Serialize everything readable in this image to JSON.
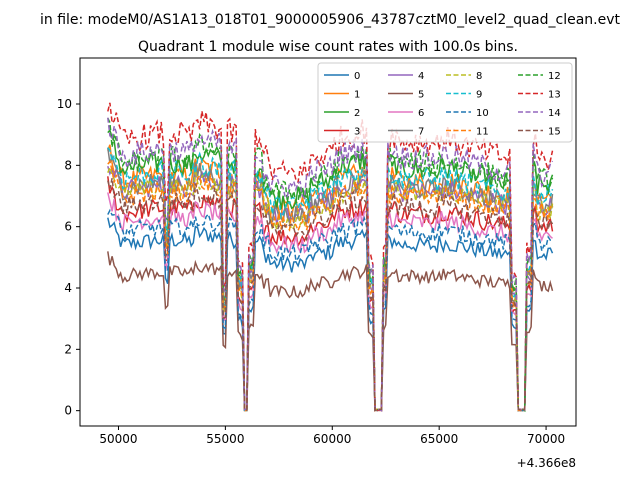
{
  "suptitle": "in file: modeM0/AS1A13_018T01_9000005906_43787cztM0_level2_quad_clean.evt",
  "chart_data": {
    "type": "line",
    "title": "Quadrant 1 module wise count rates with 100.0s bins.",
    "xlabel": "",
    "ylabel": "",
    "x_offset_label": "+4.366e8",
    "xlim": [
      48200,
      71400
    ],
    "ylim": [
      -0.5,
      11.5
    ],
    "xticks": [
      50000,
      55000,
      60000,
      65000,
      70000
    ],
    "xtick_labels": [
      "50000",
      "55000",
      "60000",
      "65000",
      "70000"
    ],
    "yticks": [
      0,
      2,
      4,
      6,
      8,
      10
    ],
    "ytick_labels": [
      "0",
      "2",
      "4",
      "6",
      "8",
      "10"
    ],
    "grid": false,
    "legend": {
      "placement": "top-right",
      "columns": 4
    },
    "gaps": [
      [
        55850,
        56050
      ],
      [
        61950,
        62300
      ],
      [
        68650,
        69050
      ]
    ],
    "series": [
      {
        "name": "0",
        "color": "#1f77b4",
        "dash": "solid",
        "level": 5.3
      },
      {
        "name": "1",
        "color": "#ff7f0e",
        "dash": "solid",
        "level": 7.3
      },
      {
        "name": "2",
        "color": "#2ca02c",
        "dash": "solid",
        "level": 7.7
      },
      {
        "name": "3",
        "color": "#d62728",
        "dash": "solid",
        "level": 6.3
      },
      {
        "name": "4",
        "color": "#9467bd",
        "dash": "solid",
        "level": 7.0
      },
      {
        "name": "5",
        "color": "#8c564b",
        "dash": "solid",
        "level": 4.3
      },
      {
        "name": "6",
        "color": "#e377c2",
        "dash": "solid",
        "level": 6.0
      },
      {
        "name": "7",
        "color": "#7f7f7f",
        "dash": "solid",
        "level": 7.1
      },
      {
        "name": "8",
        "color": "#bcbd22",
        "dash": "dashed",
        "level": 6.9
      },
      {
        "name": "9",
        "color": "#17becf",
        "dash": "dashed",
        "level": 7.4
      },
      {
        "name": "10",
        "color": "#1f77b4",
        "dash": "dashed",
        "level": 5.7
      },
      {
        "name": "11",
        "color": "#ff7f0e",
        "dash": "dashed",
        "level": 6.8
      },
      {
        "name": "12",
        "color": "#2ca02c",
        "dash": "dashed",
        "level": 7.9
      },
      {
        "name": "13",
        "color": "#d62728",
        "dash": "dashed",
        "level": 8.6
      },
      {
        "name": "14",
        "color": "#9467bd",
        "dash": "dashed",
        "level": 8.1
      },
      {
        "name": "15",
        "color": "#8c564b",
        "dash": "dashed",
        "level": 6.5
      }
    ]
  }
}
